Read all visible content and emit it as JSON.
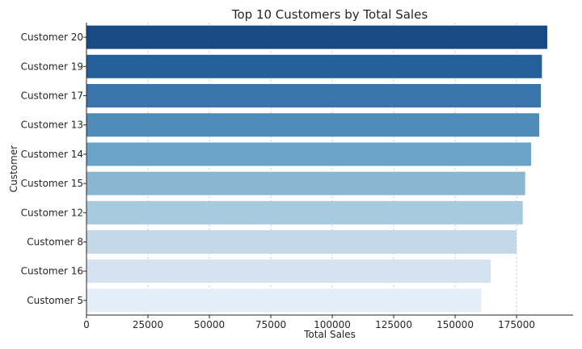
{
  "chart_data": {
    "type": "bar",
    "orientation": "horizontal",
    "title": "Top 10 Customers by Total Sales",
    "xlabel": "Total Sales",
    "ylabel": "Customer",
    "xlim": [
      0,
      198000
    ],
    "x_ticks": [
      0,
      25000,
      50000,
      75000,
      100000,
      125000,
      150000,
      175000
    ],
    "x_tick_labels": [
      "0",
      "25000",
      "50000",
      "75000",
      "100000",
      "125000",
      "150000",
      "175000"
    ],
    "grid": "x-dashed",
    "categories": [
      "Customer 20",
      "Customer 19",
      "Customer 17",
      "Customer 13",
      "Customer 14",
      "Customer 15",
      "Customer 12",
      "Customer 8",
      "Customer 16",
      "Customer 5"
    ],
    "values": [
      187500,
      185300,
      184900,
      184200,
      180900,
      178500,
      177500,
      175000,
      164500,
      160700
    ],
    "colors": [
      "#1a4a85",
      "#255f9a",
      "#3975ab",
      "#4f8db8",
      "#6aa4c8",
      "#89b7d1",
      "#a8cae0",
      "#c4d8e9",
      "#d5e3f1",
      "#e4eef8"
    ]
  }
}
